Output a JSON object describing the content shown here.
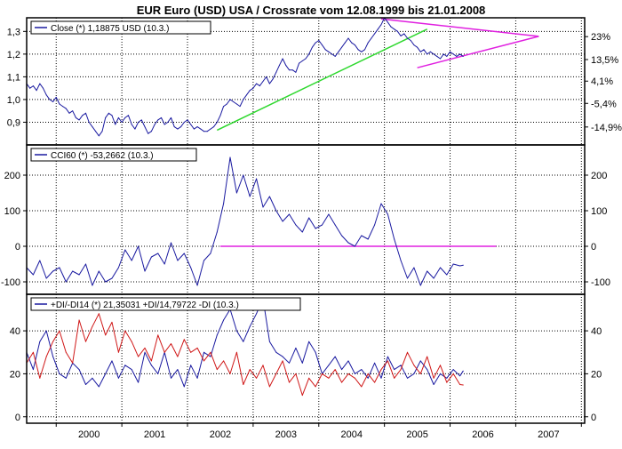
{
  "title": "EUR Euro (USD) USA / Crossrate vom 12.08.1999 bis 21.01.2008",
  "x_axis": {
    "range": [
      1999.55,
      2008.05
    ],
    "ticks": [
      {
        "value": 2000.5,
        "label": "2000"
      },
      {
        "value": 2001.5,
        "label": "2001"
      },
      {
        "value": 2002.5,
        "label": "2002"
      },
      {
        "value": 2003.5,
        "label": "2003"
      },
      {
        "value": 2004.5,
        "label": "2004"
      },
      {
        "value": 2005.5,
        "label": "2005"
      },
      {
        "value": 2006.5,
        "label": "2006"
      },
      {
        "value": 2007.5,
        "label": "2007"
      }
    ],
    "gridlines": [
      2000,
      2001,
      2002,
      2003,
      2004,
      2005,
      2006,
      2007,
      2008
    ]
  },
  "chart_data": [
    {
      "type": "line",
      "panel": "price",
      "legend": "Close (*) 1,18875 USD (10.3.)",
      "ylim": [
        0.8,
        1.36
      ],
      "grid": true,
      "left_ticks": [
        {
          "value": 0.9,
          "label": "0,9"
        },
        {
          "value": 1.0,
          "label": "1,0"
        },
        {
          "value": 1.1,
          "label": "1,1"
        },
        {
          "value": 1.2,
          "label": "1,2"
        },
        {
          "value": 1.3,
          "label": "1,3"
        }
      ],
      "right_ticks": [
        {
          "value": 0.879,
          "label": "-14,9%"
        },
        {
          "value": 0.983,
          "label": "-5,4%"
        },
        {
          "value": 1.081,
          "label": "4,1%"
        },
        {
          "value": 1.176,
          "label": "13,5%"
        },
        {
          "value": 1.277,
          "label": "23%"
        }
      ],
      "series": [
        {
          "color": "#1a1aa0",
          "x": [
            1999.55,
            1999.6,
            1999.65,
            1999.7,
            1999.75,
            1999.8,
            1999.85,
            1999.9,
            1999.95,
            2000.0,
            2000.05,
            2000.1,
            2000.15,
            2000.2,
            2000.25,
            2000.3,
            2000.35,
            2000.4,
            2000.45,
            2000.5,
            2000.55,
            2000.6,
            2000.65,
            2000.7,
            2000.75,
            2000.8,
            2000.85,
            2000.9,
            2000.95,
            2001.0,
            2001.05,
            2001.1,
            2001.15,
            2001.2,
            2001.25,
            2001.3,
            2001.35,
            2001.4,
            2001.45,
            2001.5,
            2001.55,
            2001.6,
            2001.65,
            2001.7,
            2001.75,
            2001.8,
            2001.85,
            2001.9,
            2001.95,
            2002.0,
            2002.05,
            2002.1,
            2002.15,
            2002.2,
            2002.25,
            2002.3,
            2002.35,
            2002.4,
            2002.45,
            2002.5,
            2002.55,
            2002.6,
            2002.65,
            2002.7,
            2002.75,
            2002.8,
            2002.85,
            2002.9,
            2002.95,
            2003.0,
            2003.05,
            2003.1,
            2003.15,
            2003.2,
            2003.25,
            2003.3,
            2003.35,
            2003.4,
            2003.45,
            2003.5,
            2003.55,
            2003.6,
            2003.65,
            2003.7,
            2003.75,
            2003.8,
            2003.85,
            2003.9,
            2003.95,
            2004.0,
            2004.05,
            2004.1,
            2004.15,
            2004.2,
            2004.25,
            2004.3,
            2004.35,
            2004.4,
            2004.45,
            2004.5,
            2004.55,
            2004.6,
            2004.65,
            2004.7,
            2004.75,
            2004.8,
            2004.85,
            2004.9,
            2004.95,
            2005.0,
            2005.05,
            2005.1,
            2005.15,
            2005.2,
            2005.25,
            2005.3,
            2005.35,
            2005.4,
            2005.45,
            2005.5,
            2005.55,
            2005.6,
            2005.65,
            2005.7,
            2005.75,
            2005.8,
            2005.85,
            2005.9,
            2005.95,
            2006.0,
            2006.05,
            2006.1,
            2006.15,
            2006.2
          ],
          "y": [
            1.07,
            1.05,
            1.06,
            1.04,
            1.07,
            1.05,
            1.02,
            1.0,
            0.99,
            1.01,
            0.98,
            0.97,
            0.96,
            0.94,
            0.95,
            0.92,
            0.91,
            0.93,
            0.94,
            0.9,
            0.88,
            0.86,
            0.84,
            0.86,
            0.92,
            0.94,
            0.93,
            0.89,
            0.92,
            0.9,
            0.92,
            0.93,
            0.89,
            0.87,
            0.9,
            0.91,
            0.88,
            0.85,
            0.86,
            0.89,
            0.91,
            0.92,
            0.89,
            0.9,
            0.92,
            0.88,
            0.87,
            0.88,
            0.9,
            0.91,
            0.89,
            0.87,
            0.88,
            0.87,
            0.86,
            0.86,
            0.87,
            0.88,
            0.9,
            0.93,
            0.97,
            0.98,
            1.0,
            0.99,
            0.98,
            0.97,
            1.0,
            1.02,
            1.04,
            1.05,
            1.07,
            1.06,
            1.08,
            1.1,
            1.07,
            1.09,
            1.12,
            1.15,
            1.18,
            1.15,
            1.13,
            1.13,
            1.12,
            1.16,
            1.17,
            1.18,
            1.2,
            1.23,
            1.25,
            1.26,
            1.24,
            1.22,
            1.21,
            1.2,
            1.19,
            1.21,
            1.23,
            1.25,
            1.27,
            1.25,
            1.24,
            1.22,
            1.21,
            1.22,
            1.25,
            1.27,
            1.29,
            1.31,
            1.33,
            1.36,
            1.34,
            1.32,
            1.31,
            1.3,
            1.28,
            1.29,
            1.27,
            1.26,
            1.24,
            1.23,
            1.21,
            1.22,
            1.2,
            1.21,
            1.2,
            1.19,
            1.18,
            1.2,
            1.19,
            1.21,
            1.2,
            1.19,
            1.2,
            1.19
          ]
        }
      ],
      "annotations": [
        {
          "kind": "line",
          "color": "#2ed82e",
          "points": [
            [
              2002.45,
              0.865
            ],
            [
              2005.65,
              1.31
            ]
          ]
        },
        {
          "kind": "line",
          "color": "#e020e0",
          "points": [
            [
              2004.95,
              1.355
            ],
            [
              2007.35,
              1.278
            ]
          ]
        },
        {
          "kind": "line",
          "color": "#e020e0",
          "points": [
            [
              2007.35,
              1.278
            ],
            [
              2005.5,
              1.14
            ]
          ]
        }
      ]
    },
    {
      "type": "line",
      "panel": "cci",
      "legend": "CCI60 (*) -53,2662 (10.3.)",
      "ylim": [
        -135,
        285
      ],
      "grid": true,
      "left_ticks": [
        {
          "value": -100,
          "label": "-100"
        },
        {
          "value": 0,
          "label": "0"
        },
        {
          "value": 100,
          "label": "100"
        },
        {
          "value": 200,
          "label": "200"
        }
      ],
      "right_ticks": [
        {
          "value": -100,
          "label": "-100"
        },
        {
          "value": 0,
          "label": "0"
        },
        {
          "value": 100,
          "label": "100"
        },
        {
          "value": 200,
          "label": "200"
        }
      ],
      "series": [
        {
          "color": "#1a1aa0",
          "x": [
            1999.55,
            1999.65,
            1999.75,
            1999.85,
            1999.95,
            2000.05,
            2000.15,
            2000.25,
            2000.35,
            2000.45,
            2000.55,
            2000.65,
            2000.75,
            2000.85,
            2000.95,
            2001.05,
            2001.15,
            2001.25,
            2001.35,
            2001.45,
            2001.55,
            2001.65,
            2001.75,
            2001.85,
            2001.95,
            2002.05,
            2002.15,
            2002.25,
            2002.35,
            2002.45,
            2002.55,
            2002.65,
            2002.75,
            2002.85,
            2002.95,
            2003.05,
            2003.15,
            2003.25,
            2003.35,
            2003.45,
            2003.55,
            2003.65,
            2003.75,
            2003.85,
            2003.95,
            2004.05,
            2004.15,
            2004.25,
            2004.35,
            2004.45,
            2004.55,
            2004.65,
            2004.75,
            2004.85,
            2004.95,
            2005.05,
            2005.15,
            2005.25,
            2005.35,
            2005.45,
            2005.55,
            2005.65,
            2005.75,
            2005.85,
            2005.95,
            2006.05,
            2006.15,
            2006.2
          ],
          "y": [
            -60,
            -80,
            -40,
            -90,
            -70,
            -60,
            -100,
            -70,
            -80,
            -50,
            -110,
            -70,
            -100,
            -90,
            -60,
            -10,
            -40,
            0,
            -70,
            -30,
            -20,
            -50,
            10,
            -40,
            -20,
            -60,
            -110,
            -40,
            -20,
            40,
            120,
            250,
            150,
            200,
            140,
            190,
            110,
            140,
            100,
            70,
            90,
            60,
            40,
            80,
            50,
            60,
            90,
            60,
            30,
            10,
            0,
            30,
            20,
            60,
            120,
            90,
            20,
            -40,
            -90,
            -60,
            -110,
            -70,
            -90,
            -60,
            -80,
            -50,
            -55,
            -53
          ]
        }
      ],
      "annotations": [
        {
          "kind": "line",
          "color": "#e020e0",
          "points": [
            [
              2002.5,
              0
            ],
            [
              2006.7,
              0
            ]
          ]
        }
      ]
    },
    {
      "type": "line",
      "panel": "dmi",
      "legend": "+DI/-DI14 (*) 21,35031 +DI/14,79722 -DI (10.3.)",
      "ylim": [
        -3,
        57
      ],
      "grid": true,
      "left_ticks": [
        {
          "value": 0,
          "label": "0"
        },
        {
          "value": 20,
          "label": "20"
        },
        {
          "value": 40,
          "label": "40"
        }
      ],
      "right_ticks": [
        {
          "value": 0,
          "label": "0"
        },
        {
          "value": 20,
          "label": "20"
        },
        {
          "value": 40,
          "label": "40"
        }
      ],
      "series": [
        {
          "color": "#1a1aa0",
          "x": [
            1999.55,
            1999.65,
            1999.75,
            1999.85,
            1999.95,
            2000.05,
            2000.15,
            2000.25,
            2000.35,
            2000.45,
            2000.55,
            2000.65,
            2000.75,
            2000.85,
            2000.95,
            2001.05,
            2001.15,
            2001.25,
            2001.35,
            2001.45,
            2001.55,
            2001.65,
            2001.75,
            2001.85,
            2001.95,
            2002.05,
            2002.15,
            2002.25,
            2002.35,
            2002.45,
            2002.55,
            2002.65,
            2002.75,
            2002.85,
            2002.95,
            2003.05,
            2003.15,
            2003.25,
            2003.35,
            2003.45,
            2003.55,
            2003.65,
            2003.75,
            2003.85,
            2003.95,
            2004.05,
            2004.15,
            2004.25,
            2004.35,
            2004.45,
            2004.55,
            2004.65,
            2004.75,
            2004.85,
            2004.95,
            2005.05,
            2005.15,
            2005.25,
            2005.35,
            2005.45,
            2005.55,
            2005.65,
            2005.75,
            2005.85,
            2005.95,
            2006.05,
            2006.15,
            2006.2
          ],
          "y": [
            30,
            22,
            35,
            40,
            28,
            20,
            18,
            25,
            22,
            15,
            18,
            14,
            20,
            26,
            18,
            24,
            22,
            16,
            30,
            24,
            20,
            30,
            18,
            22,
            14,
            24,
            18,
            30,
            28,
            38,
            45,
            50,
            40,
            35,
            42,
            48,
            55,
            35,
            30,
            28,
            25,
            32,
            25,
            35,
            30,
            20,
            24,
            28,
            22,
            26,
            20,
            22,
            18,
            25,
            18,
            28,
            22,
            24,
            18,
            20,
            26,
            22,
            15,
            20,
            18,
            22,
            19,
            21.35
          ]
        },
        {
          "color": "#d01818",
          "x": [
            1999.55,
            1999.65,
            1999.75,
            1999.85,
            1999.95,
            2000.05,
            2000.15,
            2000.25,
            2000.35,
            2000.45,
            2000.55,
            2000.65,
            2000.75,
            2000.85,
            2000.95,
            2001.05,
            2001.15,
            2001.25,
            2001.35,
            2001.45,
            2001.55,
            2001.65,
            2001.75,
            2001.85,
            2001.95,
            2002.05,
            2002.15,
            2002.25,
            2002.35,
            2002.45,
            2002.55,
            2002.65,
            2002.75,
            2002.85,
            2002.95,
            2003.05,
            2003.15,
            2003.25,
            2003.35,
            2003.45,
            2003.55,
            2003.65,
            2003.75,
            2003.85,
            2003.95,
            2004.05,
            2004.15,
            2004.25,
            2004.35,
            2004.45,
            2004.55,
            2004.65,
            2004.75,
            2004.85,
            2004.95,
            2005.05,
            2005.15,
            2005.25,
            2005.35,
            2005.45,
            2005.55,
            2005.65,
            2005.75,
            2005.85,
            2005.95,
            2006.05,
            2006.15,
            2006.2
          ],
          "y": [
            25,
            30,
            18,
            28,
            35,
            40,
            30,
            25,
            45,
            35,
            42,
            48,
            38,
            44,
            30,
            40,
            35,
            28,
            32,
            26,
            38,
            30,
            34,
            28,
            36,
            30,
            32,
            26,
            30,
            22,
            26,
            20,
            30,
            15,
            22,
            18,
            24,
            14,
            20,
            26,
            16,
            20,
            10,
            18,
            14,
            20,
            18,
            22,
            16,
            20,
            18,
            14,
            20,
            16,
            22,
            26,
            18,
            22,
            30,
            24,
            20,
            28,
            18,
            24,
            16,
            20,
            15,
            14.8
          ]
        }
      ],
      "annotations": []
    }
  ]
}
